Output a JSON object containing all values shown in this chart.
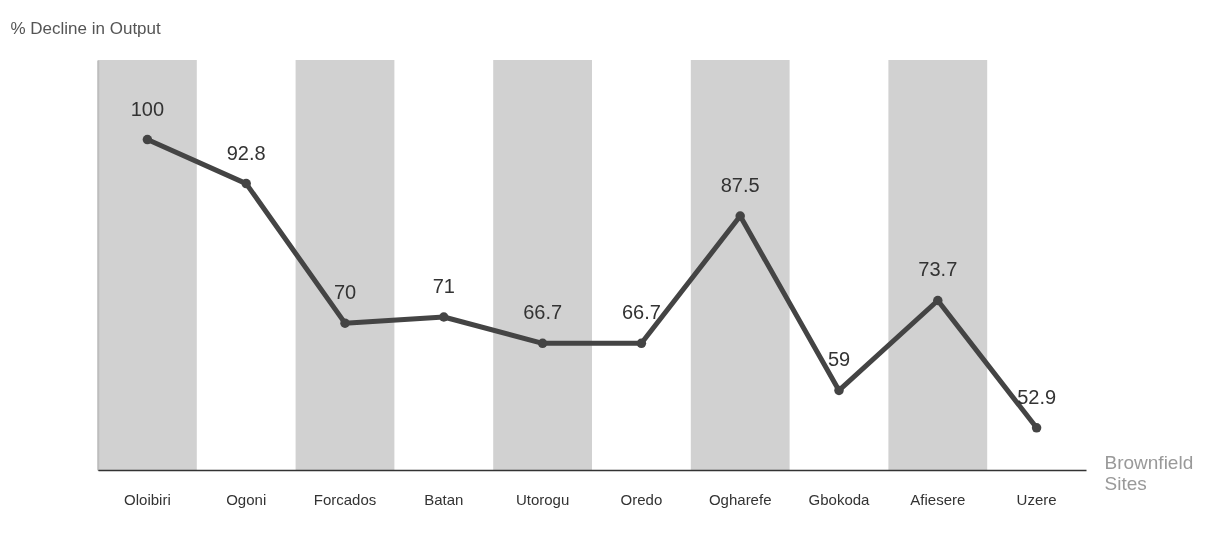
{
  "chart_data": {
    "type": "line",
    "xlabel": "Brownfield Sites",
    "ylabel": "% Decline in Output",
    "categories": [
      "Oloibiri",
      "Ogoni",
      "Forcados",
      "Batan",
      "Utorogu",
      "Oredo",
      "Ogharefe",
      "Gbokoda",
      "Afiesere",
      "Uzere"
    ],
    "values": [
      100,
      92.8,
      70,
      71,
      66.7,
      66.7,
      87.5,
      59,
      73.7,
      52.9
    ],
    "color": "#444444",
    "marker": "circle",
    "line_style": "solid",
    "data_labels": true,
    "ylim": [
      46,
      113
    ],
    "grid": false,
    "bands": [
      {
        "axis": "x",
        "from": "Oloibiri",
        "to": "Oloibiri",
        "color": "#cccccc"
      },
      {
        "axis": "x",
        "from": "Forcados",
        "to": "Forcados",
        "color": "#cccccc"
      },
      {
        "axis": "x",
        "from": "Utorogu",
        "to": "Utorogu",
        "color": "#cccccc"
      },
      {
        "axis": "x",
        "from": "Ogharefe",
        "to": "Ogharefe",
        "color": "#cccccc"
      },
      {
        "axis": "x",
        "from": "Afiesere",
        "to": "Afiesere",
        "color": "#cccccc"
      }
    ]
  }
}
